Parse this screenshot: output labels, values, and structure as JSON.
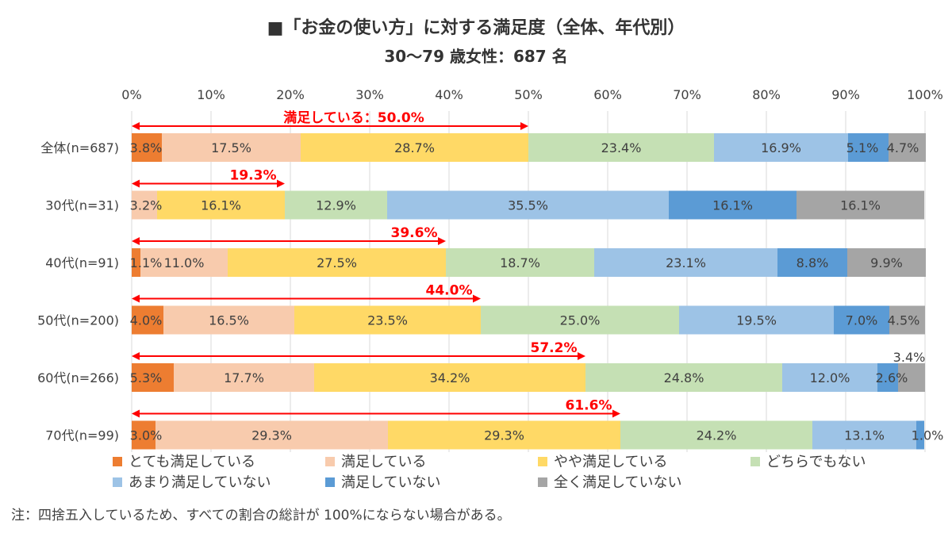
{
  "chart_data": {
    "type": "bar",
    "orientation": "horizontal",
    "stacked": true,
    "title": "■「お金の使い方」に対する満足度（全体、年代別）",
    "subtitle": "30～79 歳女性：687 名",
    "x_ticks": [
      "0%",
      "10%",
      "20%",
      "30%",
      "40%",
      "50%",
      "60%",
      "70%",
      "80%",
      "90%",
      "100%"
    ],
    "xlim": [
      0,
      100
    ],
    "categories": [
      "全体(n=687)",
      "30代(n=31)",
      "40代(n=91)",
      "50代(n=200)",
      "60代(n=266)",
      "70代(n=99)"
    ],
    "series": [
      {
        "name": "とても満足している",
        "color": "#ed7d31",
        "values": [
          3.8,
          0,
          1.1,
          4.0,
          5.3,
          3.0
        ],
        "labels": [
          "3.8%",
          "",
          "1.1%",
          "4.0%",
          "5.3%",
          "3.0%"
        ]
      },
      {
        "name": "満足している",
        "color": "#f8cbad",
        "values": [
          17.5,
          3.2,
          11.0,
          16.5,
          17.7,
          29.3
        ],
        "labels": [
          "17.5%",
          "3.2%",
          "11.0%",
          "16.5%",
          "17.7%",
          "29.3%"
        ]
      },
      {
        "name": "やや満足している",
        "color": "#ffd966",
        "values": [
          28.7,
          16.1,
          27.5,
          23.5,
          34.2,
          29.3
        ],
        "labels": [
          "28.7%",
          "16.1%",
          "27.5%",
          "23.5%",
          "34.2%",
          "29.3%"
        ]
      },
      {
        "name": "どちらでもない",
        "color": "#c5e0b4",
        "values": [
          23.4,
          12.9,
          18.7,
          25.0,
          24.8,
          24.2
        ],
        "labels": [
          "23.4%",
          "12.9%",
          "18.7%",
          "25.0%",
          "24.8%",
          "24.2%"
        ]
      },
      {
        "name": "あまり満足していない",
        "color": "#9dc3e6",
        "values": [
          16.9,
          35.5,
          23.1,
          19.5,
          12.0,
          13.1
        ],
        "labels": [
          "16.9%",
          "35.5%",
          "23.1%",
          "19.5%",
          "12.0%",
          "13.1%"
        ]
      },
      {
        "name": "満足していない",
        "color": "#5b9bd5",
        "values": [
          5.1,
          16.1,
          8.8,
          7.0,
          2.6,
          1.0
        ],
        "labels": [
          "5.1%",
          "16.1%",
          "8.8%",
          "7.0%",
          "2.6%",
          "1.0%"
        ]
      },
      {
        "name": "全く満足していない",
        "color": "#a5a5a5",
        "values": [
          4.7,
          16.1,
          9.9,
          4.5,
          3.4,
          0
        ],
        "labels": [
          "4.7%",
          "16.1%",
          "9.9%",
          "4.5%",
          "3.4%",
          ""
        ]
      }
    ],
    "satisfied_totals": [
      50.0,
      19.3,
      39.6,
      44.0,
      57.2,
      61.6
    ],
    "satisfied_labels": [
      "満足している：50.0%",
      "19.3%",
      "39.6%",
      "44.0%",
      "57.2%",
      "61.6%"
    ],
    "satisfied_color": "#ff0000",
    "legend_position": "bottom",
    "grid": true
  },
  "note": "注：四捨五入しているため、すべての割合の総計が 100%にならない場合がある。"
}
